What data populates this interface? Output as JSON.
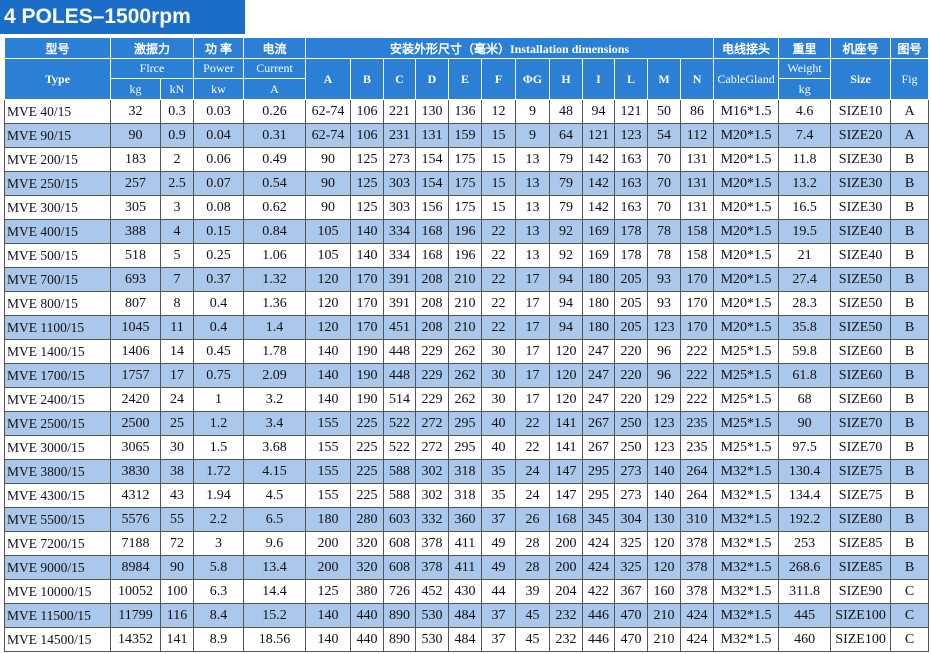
{
  "title": "4 POLES–1500rpm",
  "header": {
    "row1": [
      "型号",
      "激振力",
      "功 率",
      "电流",
      "安装外形尺寸（毫米）Installation dimensions",
      "电线接头",
      "重里",
      "机座号",
      "图号"
    ],
    "row2": [
      "Type",
      "Flrce",
      "Power",
      "Current",
      "A",
      "B",
      "C",
      "D",
      "E",
      "F",
      "ΦG",
      "H",
      "I",
      "L",
      "M",
      "N",
      "CableGland",
      "Weight",
      "Size",
      "Fig"
    ],
    "row3": [
      "kg",
      "kN",
      "kw",
      "A",
      "kg"
    ]
  },
  "table": {
    "rows": [
      [
        "MVE 40/15",
        "32",
        "0.3",
        "0.03",
        "0.26",
        "62-74",
        "106",
        "221",
        "130",
        "136",
        "12",
        "9",
        "48",
        "94",
        "121",
        "50",
        "86",
        "M16*1.5",
        "4.6",
        "SIZE10",
        "A"
      ],
      [
        "MVE 90/15",
        "90",
        "0.9",
        "0.04",
        "0.31",
        "62-74",
        "106",
        "231",
        "131",
        "159",
        "15",
        "9",
        "64",
        "121",
        "123",
        "54",
        "112",
        "M20*1.5",
        "7.4",
        "SIZE20",
        "A"
      ],
      [
        "MVE 200/15",
        "183",
        "2",
        "0.06",
        "0.49",
        "90",
        "125",
        "273",
        "154",
        "175",
        "15",
        "13",
        "79",
        "142",
        "163",
        "70",
        "131",
        "M20*1.5",
        "11.8",
        "SIZE30",
        "B"
      ],
      [
        "MVE 250/15",
        "257",
        "2.5",
        "0.07",
        "0.54",
        "90",
        "125",
        "303",
        "154",
        "175",
        "15",
        "13",
        "79",
        "142",
        "163",
        "70",
        "131",
        "M20*1.5",
        "13.2",
        "SIZE30",
        "B"
      ],
      [
        "MVE 300/15",
        "305",
        "3",
        "0.08",
        "0.62",
        "90",
        "125",
        "303",
        "156",
        "175",
        "15",
        "13",
        "79",
        "142",
        "163",
        "70",
        "131",
        "M20*1.5",
        "16.5",
        "SIZE30",
        "B"
      ],
      [
        "MVE 400/15",
        "388",
        "4",
        "0.15",
        "0.84",
        "105",
        "140",
        "334",
        "168",
        "196",
        "22",
        "13",
        "92",
        "169",
        "178",
        "78",
        "158",
        "M20*1.5",
        "19.5",
        "SIZE40",
        "B"
      ],
      [
        "MVE 500/15",
        "518",
        "5",
        "0.25",
        "1.06",
        "105",
        "140",
        "334",
        "168",
        "196",
        "22",
        "13",
        "92",
        "169",
        "178",
        "78",
        "158",
        "M20*1.5",
        "21",
        "SIZE40",
        "B"
      ],
      [
        "MVE 700/15",
        "693",
        "7",
        "0.37",
        "1.32",
        "120",
        "170",
        "391",
        "208",
        "210",
        "22",
        "17",
        "94",
        "180",
        "205",
        "93",
        "170",
        "M20*1.5",
        "27.4",
        "SIZE50",
        "B"
      ],
      [
        "MVE 800/15",
        "807",
        "8",
        "0.4",
        "1.36",
        "120",
        "170",
        "391",
        "208",
        "210",
        "22",
        "17",
        "94",
        "180",
        "205",
        "93",
        "170",
        "M20*1.5",
        "28.3",
        "SIZE50",
        "B"
      ],
      [
        "MVE 1100/15",
        "1045",
        "11",
        "0.4",
        "1.4",
        "120",
        "170",
        "451",
        "208",
        "210",
        "22",
        "17",
        "94",
        "180",
        "205",
        "123",
        "170",
        "M20*1.5",
        "35.8",
        "SIZE50",
        "B"
      ],
      [
        "MVE 1400/15",
        "1406",
        "14",
        "0.45",
        "1.78",
        "140",
        "190",
        "448",
        "229",
        "262",
        "30",
        "17",
        "120",
        "247",
        "220",
        "96",
        "222",
        "M25*1.5",
        "59.8",
        "SIZE60",
        "B"
      ],
      [
        "MVE 1700/15",
        "1757",
        "17",
        "0.75",
        "2.09",
        "140",
        "190",
        "448",
        "229",
        "262",
        "30",
        "17",
        "120",
        "247",
        "220",
        "96",
        "222",
        "M25*1.5",
        "61.8",
        "SIZE60",
        "B"
      ],
      [
        "MVE 2400/15",
        "2420",
        "24",
        "1",
        "3.2",
        "140",
        "190",
        "514",
        "229",
        "262",
        "30",
        "17",
        "120",
        "247",
        "220",
        "129",
        "222",
        "M25*1.5",
        "68",
        "SIZE60",
        "B"
      ],
      [
        "MVE 2500/15",
        "2500",
        "25",
        "1.2",
        "3.4",
        "155",
        "225",
        "522",
        "272",
        "295",
        "40",
        "22",
        "141",
        "267",
        "250",
        "123",
        "235",
        "M25*1.5",
        "90",
        "SIZE70",
        "B"
      ],
      [
        "MVE 3000/15",
        "3065",
        "30",
        "1.5",
        "3.68",
        "155",
        "225",
        "522",
        "272",
        "295",
        "40",
        "22",
        "141",
        "267",
        "250",
        "123",
        "235",
        "M25*1.5",
        "97.5",
        "SIZE70",
        "B"
      ],
      [
        "MVE 3800/15",
        "3830",
        "38",
        "1.72",
        "4.15",
        "155",
        "225",
        "588",
        "302",
        "318",
        "35",
        "24",
        "147",
        "295",
        "273",
        "140",
        "264",
        "M32*1.5",
        "130.4",
        "SIZE75",
        "B"
      ],
      [
        "MVE 4300/15",
        "4312",
        "43",
        "1.94",
        "4.5",
        "155",
        "225",
        "588",
        "302",
        "318",
        "35",
        "24",
        "147",
        "295",
        "273",
        "140",
        "264",
        "M32*1.5",
        "134.4",
        "SIZE75",
        "B"
      ],
      [
        "MVE 5500/15",
        "5576",
        "55",
        "2.2",
        "6.5",
        "180",
        "280",
        "603",
        "332",
        "360",
        "37",
        "26",
        "168",
        "345",
        "304",
        "130",
        "310",
        "M32*1.5",
        "192.2",
        "SIZE80",
        "B"
      ],
      [
        "MVE 7200/15",
        "7188",
        "72",
        "3",
        "9.6",
        "200",
        "320",
        "608",
        "378",
        "411",
        "49",
        "28",
        "200",
        "424",
        "325",
        "120",
        "378",
        "M32*1.5",
        "253",
        "SIZE85",
        "B"
      ],
      [
        "MVE 9000/15",
        "8984",
        "90",
        "5.8",
        "13.4",
        "200",
        "320",
        "608",
        "378",
        "411",
        "49",
        "28",
        "200",
        "424",
        "325",
        "120",
        "378",
        "M32*1.5",
        "268.6",
        "SIZE85",
        "B"
      ],
      [
        "MVE 10000/15",
        "10052",
        "100",
        "6.3",
        "14.4",
        "125",
        "380",
        "726",
        "452",
        "430",
        "44",
        "39",
        "204",
        "422",
        "367",
        "160",
        "378",
        "M32*1.5",
        "311.8",
        "SIZE90",
        "C"
      ],
      [
        "MVE 11500/15",
        "11799",
        "116",
        "8.4",
        "15.2",
        "140",
        "440",
        "890",
        "530",
        "484",
        "37",
        "45",
        "232",
        "446",
        "470",
        "210",
        "424",
        "M32*1.5",
        "445",
        "SIZE100",
        "C"
      ],
      [
        "MVE 14500/15",
        "14352",
        "141",
        "8.9",
        "18.56",
        "140",
        "440",
        "890",
        "530",
        "484",
        "37",
        "45",
        "232",
        "446",
        "470",
        "210",
        "424",
        "M32*1.5",
        "460",
        "SIZE100",
        "C"
      ]
    ]
  }
}
